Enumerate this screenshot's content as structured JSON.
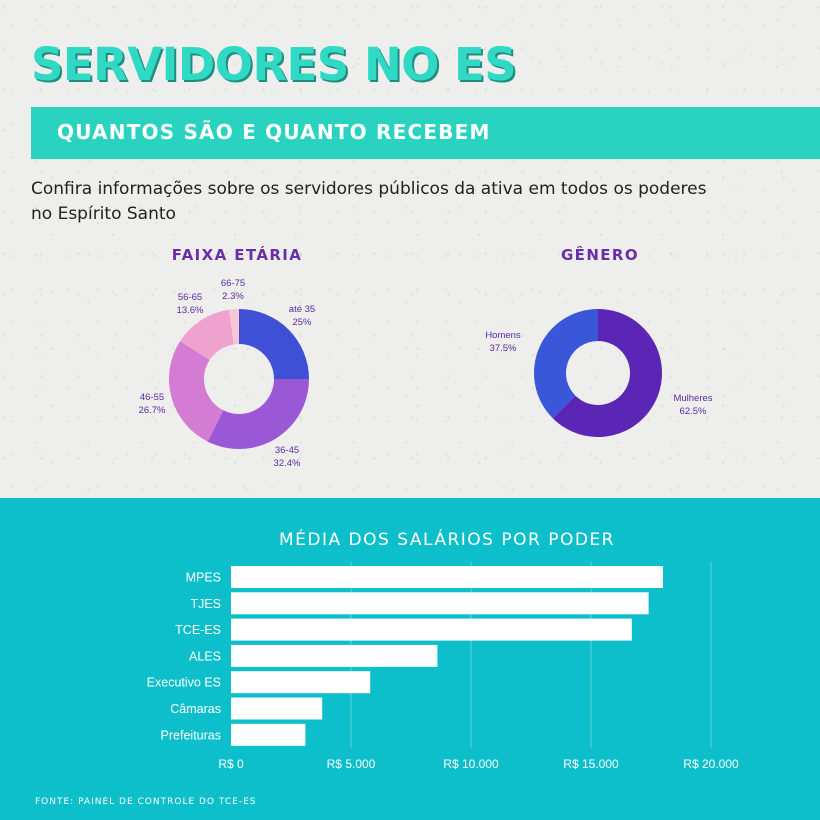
{
  "header": {
    "title": "SERVIDORES NO ES",
    "subtitle": "QUANTOS SÃO E QUANTO RECEBEM",
    "intro": "Confira informações sobre os servidores públicos da ativa em todos os poderes no Espírito Santo"
  },
  "colors": {
    "accent": "#2ad3c0",
    "title_shadow": "#1f8d80",
    "bottom_bg": "#0dbfca",
    "purple_text": "#6a2fa8"
  },
  "chart_data": [
    {
      "type": "pie",
      "title": "FAIXA ETÁRIA",
      "slices": [
        {
          "label": "até 35",
          "value": 25,
          "display": "25%",
          "color": "#3f4fd6"
        },
        {
          "label": "36-45",
          "value": 32.4,
          "display": "32.4%",
          "color": "#9a58d6"
        },
        {
          "label": "46-55",
          "value": 26.7,
          "display": "26.7%",
          "color": "#d47bd4"
        },
        {
          "label": "56-65",
          "value": 13.6,
          "display": "13.6%",
          "color": "#f0a2cf"
        },
        {
          "label": "66-75",
          "value": 2.3,
          "display": "2.3%",
          "color": "#f7c6d6"
        }
      ]
    },
    {
      "type": "pie",
      "title": "GÊNERO",
      "slices": [
        {
          "label": "Mulheres",
          "value": 62.5,
          "display": "62.5%",
          "color": "#5b25b5"
        },
        {
          "label": "Homens",
          "value": 37.5,
          "display": "37.5%",
          "color": "#3b57d9"
        }
      ]
    },
    {
      "type": "bar",
      "orientation": "horizontal",
      "title": "MÉDIA DOS SALÁRIOS POR PODER",
      "categories": [
        "MPES",
        "TJES",
        "TCE-ES",
        "ALES",
        "Executivo ES",
        "Câmaras",
        "Prefeituras"
      ],
      "values": [
        18000,
        17400,
        16700,
        8600,
        5800,
        3800,
        3100
      ],
      "xlim": [
        0,
        20000
      ],
      "ticks": [
        0,
        5000,
        10000,
        15000,
        20000
      ],
      "tick_labels": [
        "R$ 0",
        "R$ 5.000",
        "R$ 10.000",
        "R$ 15.000",
        "R$ 20.000"
      ],
      "grid": true,
      "bar_color": "#ffffff"
    }
  ],
  "footer": {
    "source": "FONTE: PAINEL DE CONTROLE DO TCE-ES"
  }
}
